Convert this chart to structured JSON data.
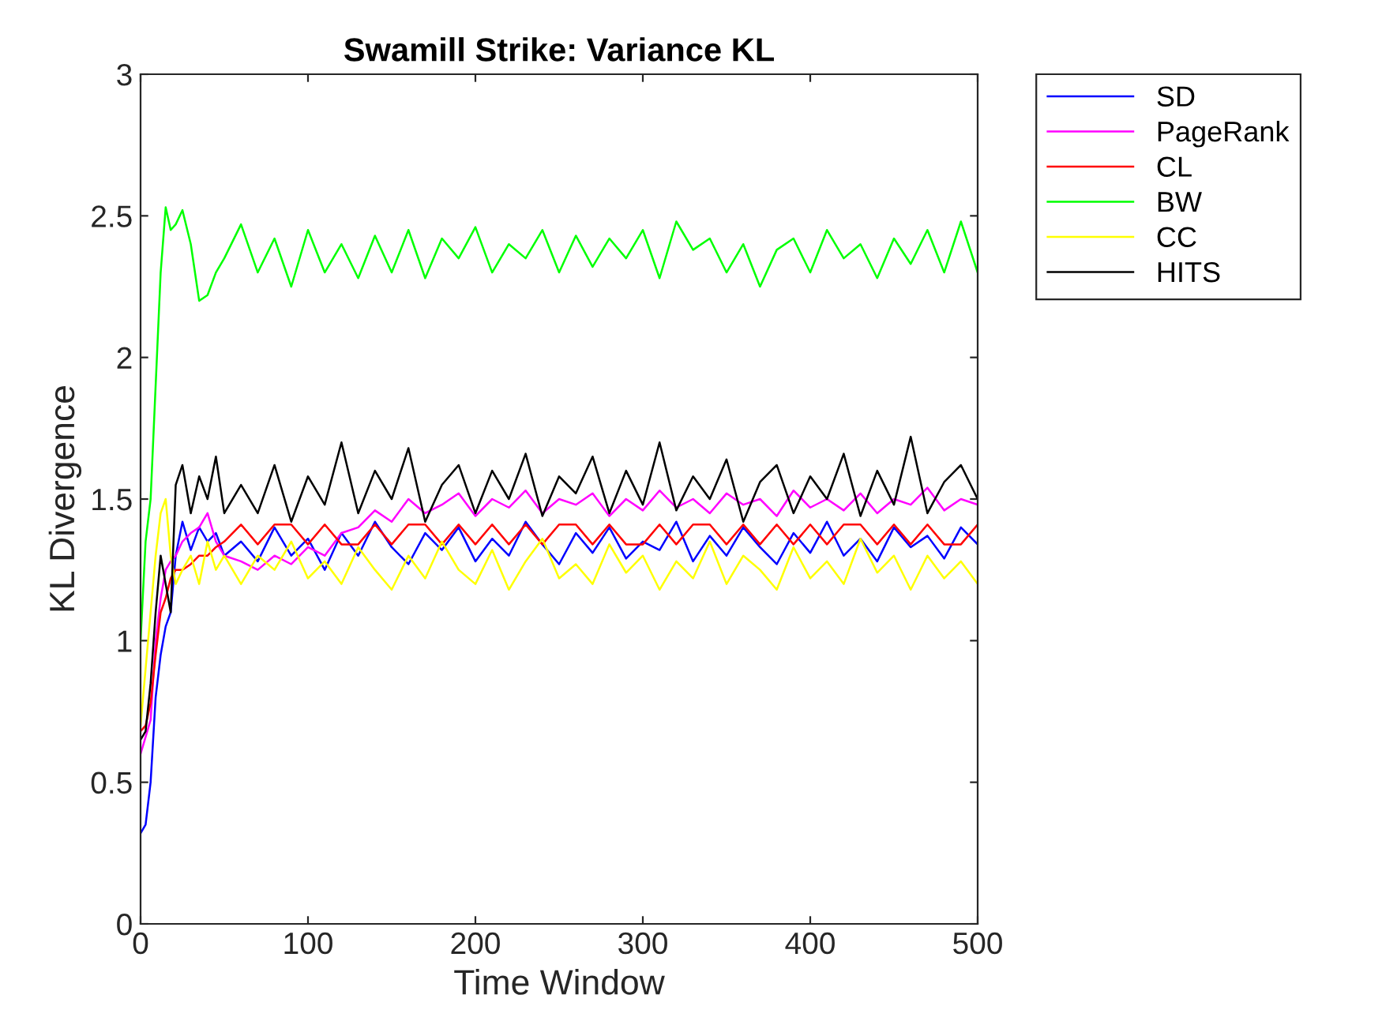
{
  "chart_data": {
    "type": "line",
    "title": "Swamill Strike: Variance KL",
    "xlabel": "Time Window",
    "ylabel": "KL Divergence",
    "x": [
      0,
      3,
      6,
      9,
      12,
      15,
      18,
      21,
      25,
      30,
      35,
      40,
      45,
      50,
      60,
      70,
      80,
      90,
      100,
      110,
      120,
      130,
      140,
      150,
      160,
      170,
      180,
      190,
      200,
      210,
      220,
      230,
      240,
      250,
      260,
      270,
      280,
      290,
      300,
      310,
      320,
      330,
      340,
      350,
      360,
      370,
      380,
      390,
      400,
      410,
      420,
      430,
      440,
      450,
      460,
      470,
      480,
      490,
      500
    ],
    "series": [
      {
        "name": "SD",
        "color": "#0000ff",
        "values": [
          0.32,
          0.35,
          0.5,
          0.8,
          0.95,
          1.05,
          1.1,
          1.3,
          1.42,
          1.32,
          1.4,
          1.35,
          1.38,
          1.3,
          1.35,
          1.28,
          1.4,
          1.3,
          1.36,
          1.25,
          1.38,
          1.3,
          1.42,
          1.33,
          1.27,
          1.38,
          1.32,
          1.4,
          1.28,
          1.36,
          1.3,
          1.42,
          1.34,
          1.27,
          1.38,
          1.31,
          1.4,
          1.29,
          1.35,
          1.32,
          1.42,
          1.28,
          1.37,
          1.3,
          1.4,
          1.33,
          1.27,
          1.38,
          1.31,
          1.42,
          1.3,
          1.36,
          1.28,
          1.4,
          1.33,
          1.37,
          1.29,
          1.4,
          1.34
        ]
      },
      {
        "name": "PageRank",
        "color": "#ff00ff",
        "values": [
          0.6,
          0.66,
          0.72,
          1.0,
          1.15,
          1.25,
          1.28,
          1.3,
          1.35,
          1.38,
          1.4,
          1.45,
          1.35,
          1.3,
          1.28,
          1.25,
          1.3,
          1.27,
          1.33,
          1.3,
          1.38,
          1.4,
          1.46,
          1.42,
          1.5,
          1.45,
          1.48,
          1.52,
          1.44,
          1.5,
          1.47,
          1.53,
          1.45,
          1.5,
          1.48,
          1.52,
          1.44,
          1.5,
          1.46,
          1.53,
          1.47,
          1.5,
          1.45,
          1.52,
          1.48,
          1.5,
          1.44,
          1.53,
          1.47,
          1.5,
          1.46,
          1.52,
          1.45,
          1.5,
          1.48,
          1.54,
          1.46,
          1.5,
          1.48
        ]
      },
      {
        "name": "CL",
        "color": "#ff0000",
        "values": [
          0.68,
          0.7,
          0.78,
          0.95,
          1.1,
          1.15,
          1.22,
          1.25,
          1.25,
          1.27,
          1.3,
          1.3,
          1.33,
          1.35,
          1.41,
          1.34,
          1.41,
          1.41,
          1.34,
          1.41,
          1.34,
          1.34,
          1.41,
          1.34,
          1.41,
          1.41,
          1.34,
          1.41,
          1.34,
          1.41,
          1.34,
          1.41,
          1.34,
          1.41,
          1.41,
          1.34,
          1.41,
          1.34,
          1.34,
          1.41,
          1.34,
          1.41,
          1.41,
          1.34,
          1.41,
          1.34,
          1.41,
          1.34,
          1.41,
          1.34,
          1.41,
          1.41,
          1.34,
          1.41,
          1.34,
          1.41,
          1.34,
          1.34,
          1.41
        ]
      },
      {
        "name": "BW",
        "color": "#00ff00",
        "values": [
          1.0,
          1.35,
          1.5,
          1.9,
          2.3,
          2.53,
          2.45,
          2.47,
          2.52,
          2.4,
          2.2,
          2.22,
          2.3,
          2.35,
          2.47,
          2.3,
          2.42,
          2.25,
          2.45,
          2.3,
          2.4,
          2.28,
          2.43,
          2.3,
          2.45,
          2.28,
          2.42,
          2.35,
          2.46,
          2.3,
          2.4,
          2.35,
          2.45,
          2.3,
          2.43,
          2.32,
          2.42,
          2.35,
          2.45,
          2.28,
          2.48,
          2.38,
          2.42,
          2.3,
          2.4,
          2.25,
          2.38,
          2.42,
          2.3,
          2.45,
          2.35,
          2.4,
          2.28,
          2.42,
          2.33,
          2.45,
          2.3,
          2.48,
          2.3
        ]
      },
      {
        "name": "CC",
        "color": "#ffff00",
        "values": [
          0.7,
          0.9,
          1.1,
          1.3,
          1.45,
          1.5,
          1.3,
          1.2,
          1.25,
          1.3,
          1.2,
          1.35,
          1.25,
          1.3,
          1.2,
          1.3,
          1.25,
          1.35,
          1.22,
          1.28,
          1.2,
          1.33,
          1.25,
          1.18,
          1.3,
          1.22,
          1.35,
          1.25,
          1.2,
          1.32,
          1.18,
          1.28,
          1.36,
          1.22,
          1.27,
          1.2,
          1.34,
          1.24,
          1.3,
          1.18,
          1.28,
          1.22,
          1.35,
          1.2,
          1.3,
          1.25,
          1.18,
          1.33,
          1.22,
          1.28,
          1.2,
          1.36,
          1.24,
          1.3,
          1.18,
          1.3,
          1.22,
          1.28,
          1.2
        ]
      },
      {
        "name": "HITS",
        "color": "#000000",
        "values": [
          0.65,
          0.68,
          0.85,
          1.1,
          1.3,
          1.2,
          1.1,
          1.55,
          1.62,
          1.45,
          1.58,
          1.5,
          1.65,
          1.45,
          1.55,
          1.45,
          1.62,
          1.42,
          1.58,
          1.48,
          1.7,
          1.45,
          1.6,
          1.5,
          1.68,
          1.42,
          1.55,
          1.62,
          1.45,
          1.6,
          1.5,
          1.66,
          1.44,
          1.58,
          1.52,
          1.65,
          1.45,
          1.6,
          1.48,
          1.7,
          1.46,
          1.58,
          1.5,
          1.64,
          1.42,
          1.56,
          1.62,
          1.45,
          1.58,
          1.5,
          1.66,
          1.44,
          1.6,
          1.48,
          1.72,
          1.45,
          1.56,
          1.62,
          1.5
        ]
      }
    ],
    "xlim": [
      0,
      500
    ],
    "xticks": [
      0,
      100,
      200,
      300,
      400,
      500
    ],
    "ylim": [
      0,
      3
    ],
    "yticks": [
      0,
      0.5,
      1,
      1.5,
      2,
      2.5,
      3
    ],
    "grid": false,
    "legend": "top right",
    "line_style": "solid",
    "marker": "none"
  }
}
